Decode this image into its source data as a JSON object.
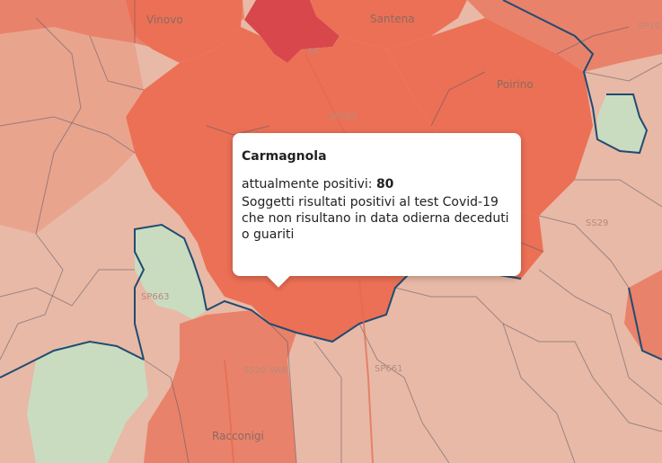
{
  "map": {
    "places": [
      {
        "id": "vinovo",
        "label": "Vinovo"
      },
      {
        "id": "santena",
        "label": "Santena"
      },
      {
        "id": "poirino",
        "label": "Poirino"
      },
      {
        "id": "racconigi",
        "label": "Racconigi"
      }
    ],
    "roads": [
      {
        "id": "sp10",
        "label": "SP10"
      },
      {
        "id": "a6",
        "label": "A6"
      },
      {
        "id": "sp393",
        "label": "SP393"
      },
      {
        "id": "ss29",
        "label": "SS29"
      },
      {
        "id": "sp663",
        "label": "SP663"
      },
      {
        "id": "ss20var",
        "label": "SS20 VAR"
      },
      {
        "id": "sp661",
        "label": "SP661"
      }
    ],
    "colors": {
      "dark_red": "#d8474b",
      "red": "#ec7055",
      "salmon": "#e9826a",
      "light": "#e8b9a6",
      "green": "#c9dcc0",
      "border": "#1f4c72"
    }
  },
  "popup": {
    "title": "Carmagnola",
    "metric_label": "attualmente positivi:",
    "metric_value": "80",
    "description": "Soggetti risultati positivi al test Covid-19 che non risultano in data odierna deceduti o guariti"
  }
}
